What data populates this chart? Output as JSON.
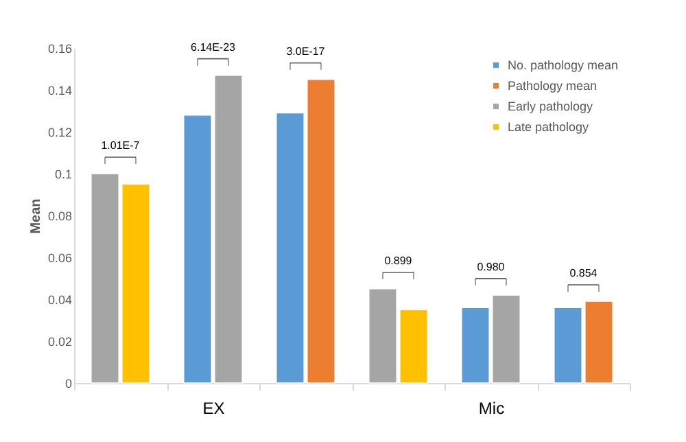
{
  "chart_data": {
    "type": "bar",
    "ylabel": "Mean",
    "categories": [
      null,
      "EX",
      null,
      null,
      "Mic",
      null
    ],
    "series": [
      {
        "name": "No. pathology mean",
        "color": "#5b9bd5",
        "values": [
          null,
          0.128,
          0.129,
          null,
          0.036,
          0.036
        ]
      },
      {
        "name": "Pathology mean",
        "color": "#ed7d31",
        "values": [
          null,
          null,
          0.145,
          null,
          null,
          0.039
        ]
      },
      {
        "name": "Early pathology",
        "color": "#a5a5a5",
        "values": [
          0.1,
          0.147,
          null,
          0.045,
          0.042,
          null
        ]
      },
      {
        "name": "Late pathology",
        "color": "#ffc000",
        "values": [
          0.095,
          null,
          null,
          0.035,
          null,
          null
        ]
      }
    ],
    "annotations": [
      "1.01E-7",
      "6.14E-23",
      "3.0E-17",
      "0.899",
      "0.980",
      "0.854"
    ],
    "ylim": [
      0,
      0.16
    ],
    "yticks": [
      0,
      0.02,
      0.04,
      0.06,
      0.08,
      0.1,
      0.12,
      0.14,
      0.16
    ],
    "grid": false,
    "legend": "top right"
  }
}
